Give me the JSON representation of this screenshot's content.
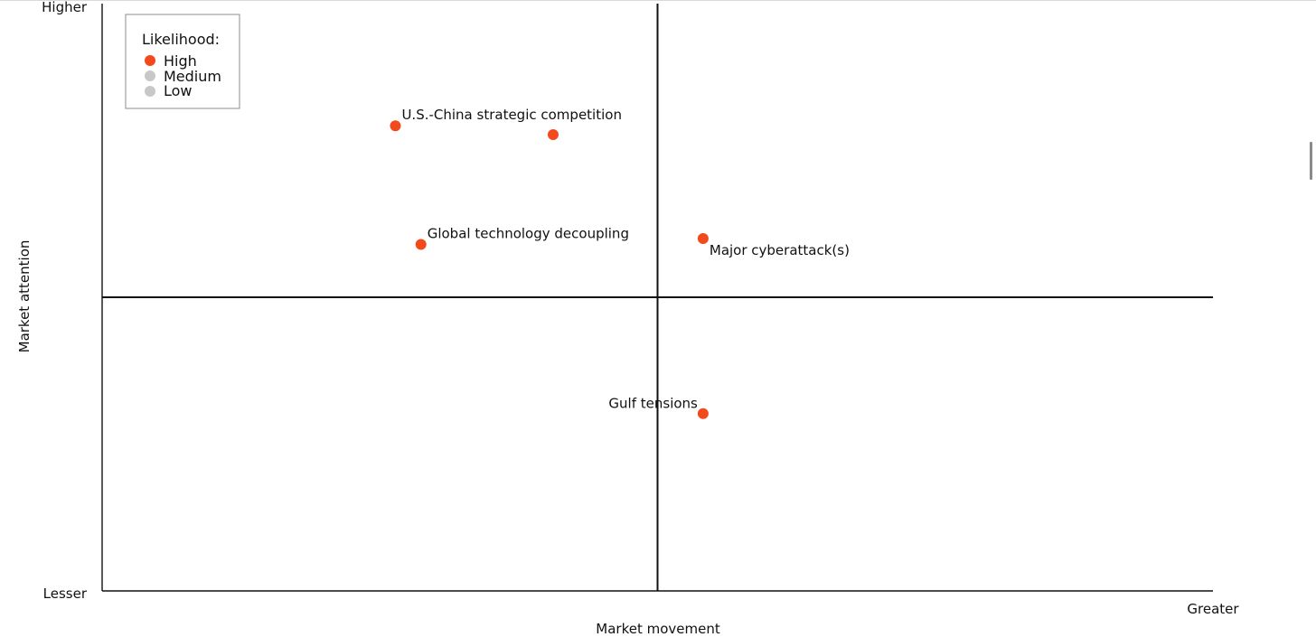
{
  "chart_data": {
    "type": "scatter",
    "xlabel": "Market movement",
    "ylabel": "Market attention",
    "x_range_labels": {
      "min": "",
      "max": "Greater"
    },
    "y_range_labels": {
      "min": "Lesser",
      "max": "Higher"
    },
    "xlim": [
      0,
      100
    ],
    "ylim": [
      0,
      100
    ],
    "quadrant_divider": {
      "x": 50,
      "y": 50
    },
    "grid": false,
    "legend": {
      "title": "Likelihood:",
      "position": "top-left",
      "items": [
        {
          "label": "High",
          "color": "#f24a1d",
          "active": true
        },
        {
          "label": "Medium",
          "color": "#c8c8c8",
          "active": false
        },
        {
          "label": "Low",
          "color": "#c8c8c8",
          "active": false
        }
      ]
    },
    "points": [
      {
        "label": "U.S.-China strategic competition",
        "x": 26.4,
        "y": 79.2,
        "likelihood": "High",
        "label_pos": "right-above"
      },
      {
        "label": "",
        "x": 40.6,
        "y": 77.7,
        "likelihood": "High",
        "label_pos": "none"
      },
      {
        "label": "Global technology decoupling",
        "x": 28.7,
        "y": 59.0,
        "likelihood": "High",
        "label_pos": "right-above"
      },
      {
        "label": "Major cyberattack(s)",
        "x": 54.1,
        "y": 60.0,
        "likelihood": "High",
        "label_pos": "right-below"
      },
      {
        "label": "Gulf tensions",
        "x": 54.1,
        "y": 30.2,
        "likelihood": "High",
        "label_pos": "left-above"
      }
    ]
  }
}
